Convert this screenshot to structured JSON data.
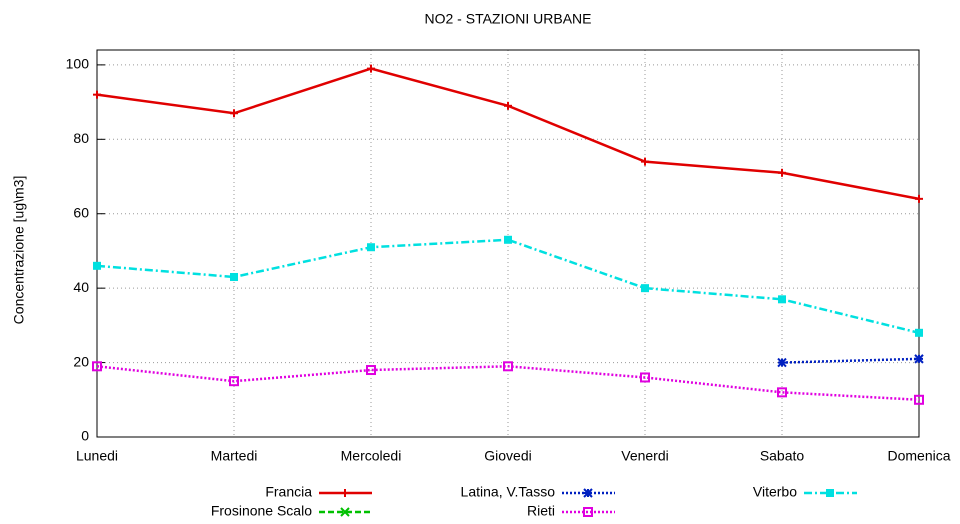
{
  "chart_data": {
    "type": "line",
    "title": "NO2 - STAZIONI URBANE",
    "y_label": "Concentrazione [ug\\m3]",
    "categories": [
      "Lunedi",
      "Martedi",
      "Mercoledi",
      "Giovedi",
      "Venerdi",
      "Sabato",
      "Domenica"
    ],
    "series": [
      {
        "name": "Francia",
        "color": "#e00000",
        "line_style": "solid",
        "marker": "plus",
        "values": [
          92,
          87,
          99,
          89,
          74,
          71,
          64
        ]
      },
      {
        "name": "Frosinone Scalo",
        "color": "#00c000",
        "line_style": "dashed",
        "marker": "cross",
        "values": [
          null,
          null,
          null,
          null,
          null,
          null,
          null
        ]
      },
      {
        "name": "Latina, V.Tasso",
        "color": "#0020c0",
        "line_style": "dotted",
        "marker": "star",
        "values": [
          null,
          null,
          null,
          null,
          null,
          20,
          21
        ]
      },
      {
        "name": "Rieti",
        "color": "#e000e0",
        "line_style": "dotted",
        "marker": "square-open",
        "values": [
          19,
          15,
          18,
          19,
          16,
          12,
          10
        ]
      },
      {
        "name": "Viterbo",
        "color": "#00e0e0",
        "line_style": "dashdot",
        "marker": "square-filled",
        "values": [
          46,
          43,
          51,
          53,
          40,
          37,
          28
        ]
      }
    ],
    "ylim": [
      0,
      104
    ],
    "yticks": [
      0,
      20,
      40,
      60,
      80,
      100
    ],
    "grid": true
  }
}
